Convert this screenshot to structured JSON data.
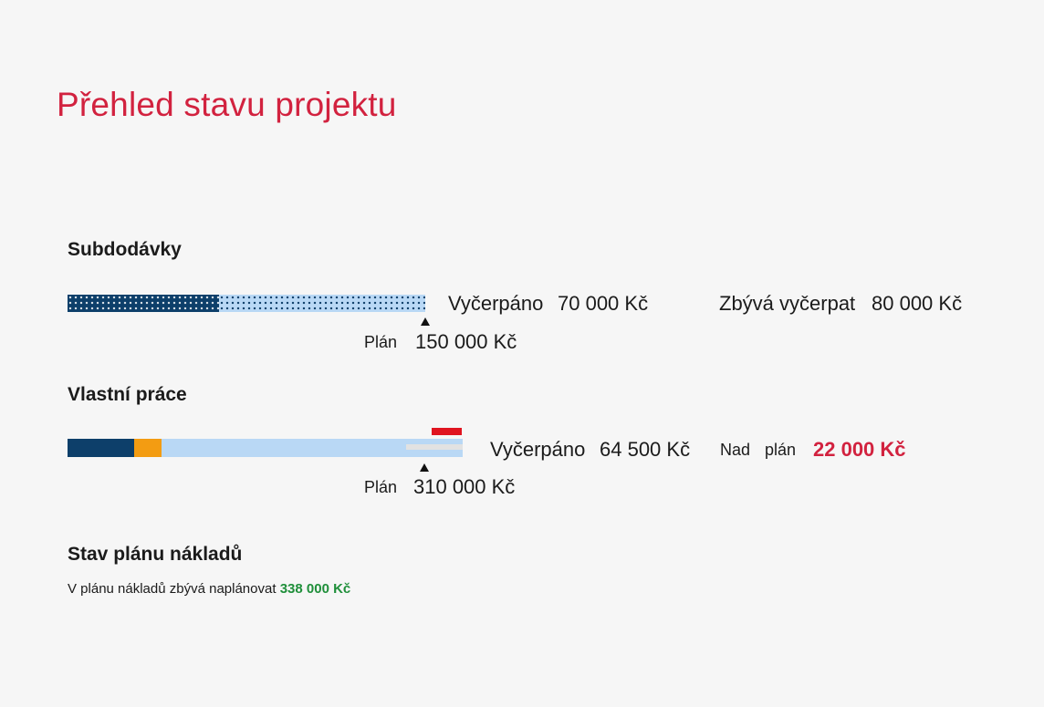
{
  "title": "Přehled stavu projektu",
  "subdodavky": {
    "heading": "Subdodávky",
    "spent_label": "Vyčerpáno",
    "spent_value": "70 000 Kč",
    "remaining_label": "Zbývá vyčerpat",
    "remaining_value": "80 000 Kč",
    "plan_label": "Plán",
    "plan_value": "150 000 Kč",
    "spent_fraction": 0.467
  },
  "vlastni_prace": {
    "heading": "Vlastní práce",
    "spent_label": "Vyčerpáno",
    "spent_value": "64 500 Kč",
    "over_label_1": "Nad",
    "over_label_2": "plán",
    "over_value": "22 000 Kč",
    "plan_label": "Plán",
    "plan_value": "310 000 Kč"
  },
  "stav_planu": {
    "heading": "Stav plánu nákladů",
    "note_text": "V plánu nákladů zbývá naplánovat",
    "note_value": "338 000 Kč"
  },
  "colors": {
    "accent_red": "#d2223f",
    "dark_blue": "#0d3f6a",
    "light_blue": "#b9d8f5",
    "orange": "#f39c12",
    "green": "#1f8f3a"
  }
}
